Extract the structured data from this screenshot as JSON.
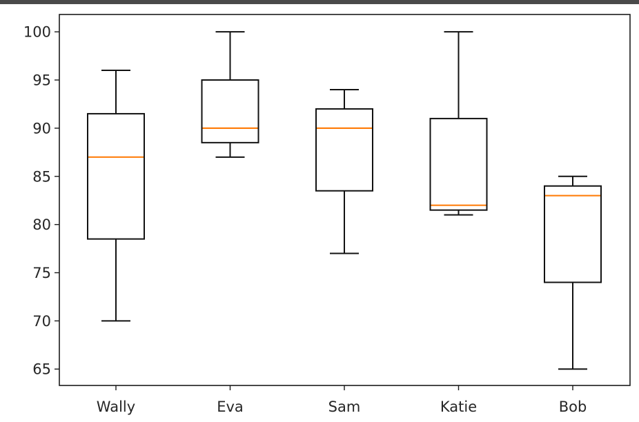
{
  "chart_data": {
    "type": "boxplot",
    "title": "",
    "xlabel": "",
    "ylabel": "",
    "ylim": [
      63.3,
      101.8
    ],
    "yticks": [
      65,
      70,
      75,
      80,
      85,
      90,
      95,
      100
    ],
    "categories": [
      "Wally",
      "Eva",
      "Sam",
      "Katie",
      "Bob"
    ],
    "boxes": [
      {
        "name": "Wally",
        "min": 70,
        "q1": 78.5,
        "median": 87,
        "q3": 91.5,
        "max": 96
      },
      {
        "name": "Eva",
        "min": 87,
        "q1": 88.5,
        "median": 90,
        "q3": 95,
        "max": 100
      },
      {
        "name": "Sam",
        "min": 77,
        "q1": 83.5,
        "median": 90,
        "q3": 92,
        "max": 94
      },
      {
        "name": "Katie",
        "min": 81,
        "q1": 81.5,
        "median": 82,
        "q3": 91,
        "max": 100
      },
      {
        "name": "Bob",
        "min": 65,
        "q1": 74,
        "median": 83,
        "q3": 84,
        "max": 85
      }
    ],
    "colors": {
      "box": "#000000",
      "median": "#ff7f0e"
    },
    "grid": false,
    "legend": "none"
  }
}
